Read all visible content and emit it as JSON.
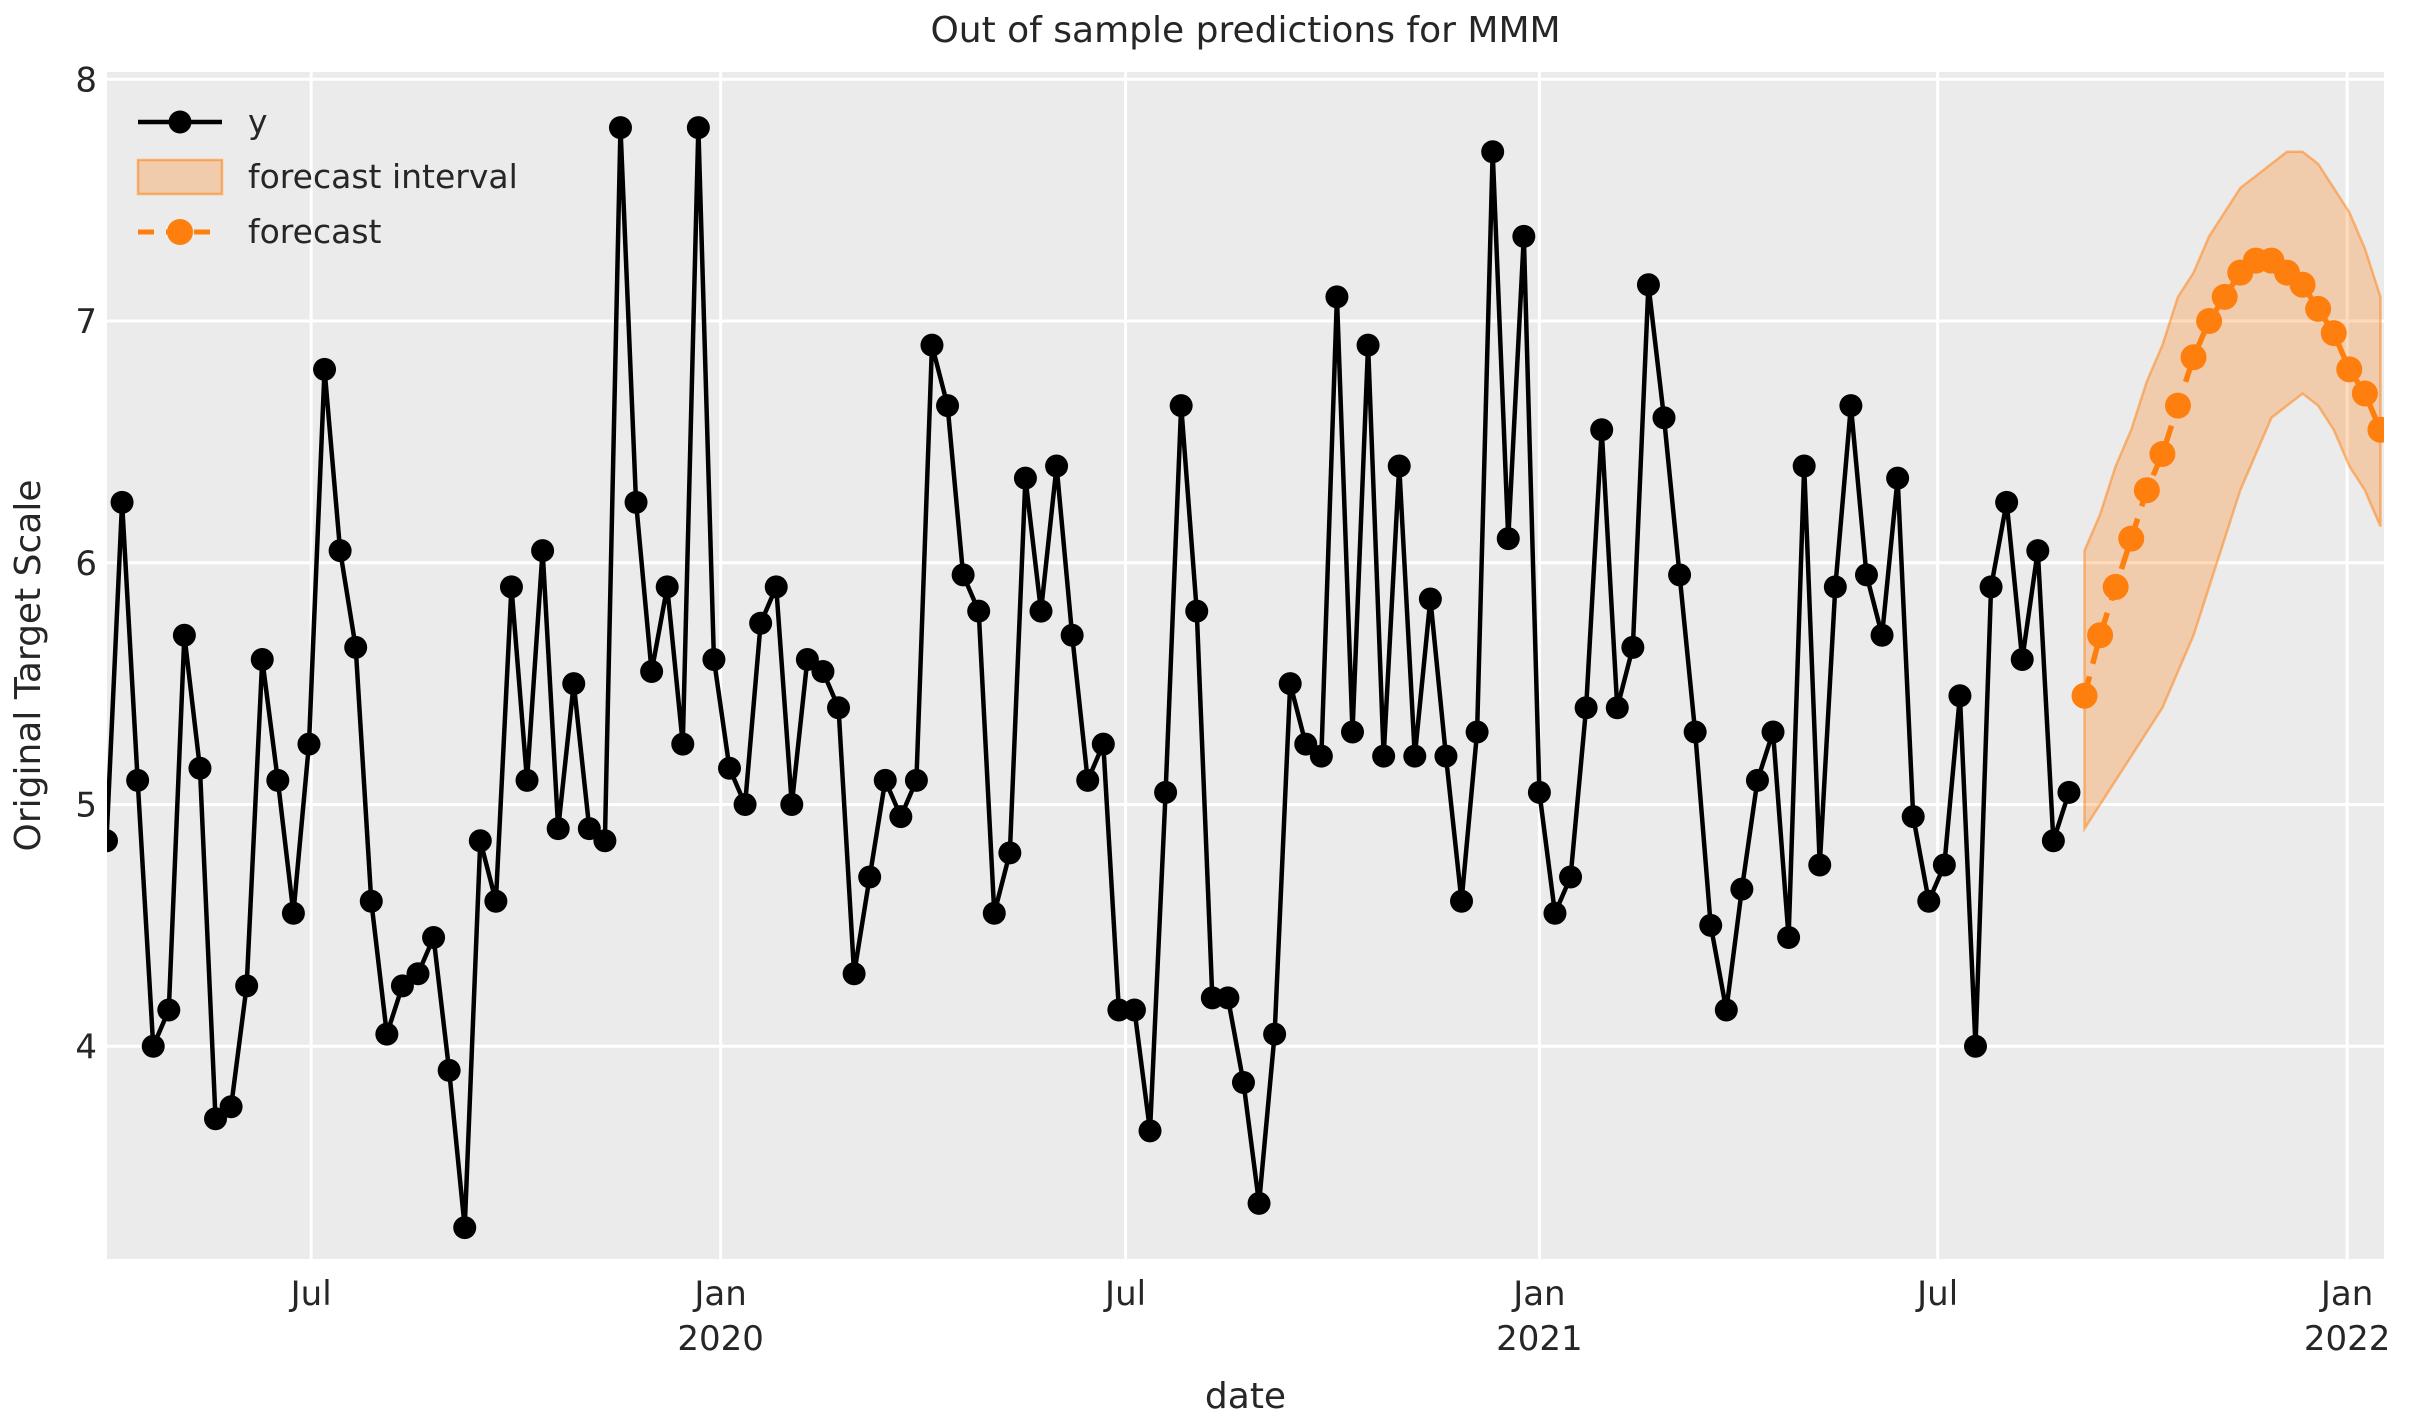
{
  "chart_data": {
    "type": "line",
    "title": "Out of sample predictions for MMM",
    "xlabel": "date",
    "ylabel": "Original Target Scale",
    "grid": true,
    "legend_position": "upper left",
    "plot_background": "#ebebeb",
    "grid_color": "#ffffff",
    "text_color": "#262626",
    "ylim": [
      3.12,
      8.03
    ],
    "yticks": [
      4,
      5,
      6,
      7,
      8
    ],
    "xticks": [
      {
        "label": "Jul",
        "year": "",
        "index": 13.14
      },
      {
        "label": "Jan",
        "year": "2020",
        "index": 39.43
      },
      {
        "label": "Jul",
        "year": "",
        "index": 65.43
      },
      {
        "label": "Jan",
        "year": "2021",
        "index": 92.0
      },
      {
        "label": "Jul",
        "year": "",
        "index": 117.57
      },
      {
        "label": "Jan",
        "year": "2022",
        "index": 143.86
      }
    ],
    "legend": [
      {
        "label": "y",
        "kind": "line-marker",
        "color": "#000000"
      },
      {
        "label": "forecast interval",
        "kind": "band",
        "fill": "rgba(255,127,14,0.28)",
        "edge": "rgba(255,127,14,0.55)"
      },
      {
        "label": "forecast",
        "kind": "dashed-line-marker",
        "color": "#ff7f0e"
      }
    ],
    "series": [
      {
        "name": "y",
        "color": "#000000",
        "style": "solid",
        "marker": "circle",
        "freq": "weekly",
        "start_date": "2019-03-31",
        "end_date": "2021-08-29",
        "start_index": 0,
        "values": [
          4.85,
          6.25,
          5.1,
          4.0,
          4.15,
          5.7,
          5.15,
          3.7,
          3.75,
          4.25,
          5.6,
          5.1,
          4.55,
          5.25,
          6.8,
          6.05,
          5.65,
          4.6,
          4.05,
          4.25,
          4.3,
          4.45,
          3.9,
          3.25,
          4.85,
          4.6,
          5.9,
          5.1,
          6.05,
          4.9,
          5.5,
          4.9,
          4.85,
          7.8,
          6.25,
          5.55,
          5.9,
          5.25,
          7.8,
          5.6,
          5.15,
          5.0,
          5.75,
          5.9,
          5.0,
          5.6,
          5.55,
          5.4,
          4.3,
          4.7,
          5.1,
          4.95,
          5.1,
          6.9,
          6.65,
          5.95,
          5.8,
          4.55,
          4.8,
          6.35,
          5.8,
          6.4,
          5.7,
          5.1,
          5.25,
          4.15,
          4.15,
          3.65,
          5.05,
          6.65,
          5.8,
          4.2,
          4.2,
          3.85,
          3.35,
          4.05,
          5.5,
          5.25,
          5.2,
          7.1,
          5.3,
          6.9,
          5.2,
          6.4,
          5.2,
          5.85,
          5.2,
          4.6,
          5.3,
          7.7,
          6.1,
          7.35,
          5.05,
          4.55,
          4.7,
          5.4,
          6.55,
          5.4,
          5.65,
          7.15,
          6.6,
          5.95,
          5.3,
          4.5,
          4.15,
          4.65,
          5.1,
          5.3,
          4.45,
          6.4,
          4.75,
          5.9,
          6.65,
          5.95,
          5.7,
          6.35,
          4.95,
          4.6,
          4.75,
          5.45,
          4.0,
          5.9,
          6.25,
          5.6,
          6.05,
          4.85,
          5.05
        ]
      },
      {
        "name": "forecast",
        "color": "#ff7f0e",
        "style": "dashed",
        "marker": "circle",
        "freq": "weekly",
        "start_date": "2021-09-05",
        "end_date": "2022-01-16",
        "start_index": 127,
        "values": [
          5.45,
          5.7,
          5.9,
          6.1,
          6.3,
          6.45,
          6.65,
          6.85,
          7.0,
          7.1,
          7.2,
          7.25,
          7.25,
          7.2,
          7.15,
          7.05,
          6.95,
          6.8,
          6.7,
          6.55
        ]
      }
    ],
    "interval": {
      "name": "forecast interval",
      "freq": "weekly",
      "start_date": "2021-09-05",
      "start_index": 127,
      "fill": "rgba(255,127,14,0.28)",
      "edge": "rgba(255,127,14,0.5)",
      "upper": [
        6.05,
        6.2,
        6.4,
        6.55,
        6.75,
        6.9,
        7.1,
        7.2,
        7.35,
        7.45,
        7.55,
        7.6,
        7.65,
        7.7,
        7.7,
        7.65,
        7.55,
        7.45,
        7.3,
        7.1
      ],
      "lower": [
        4.9,
        5.0,
        5.1,
        5.2,
        5.3,
        5.4,
        5.55,
        5.7,
        5.9,
        6.1,
        6.3,
        6.45,
        6.6,
        6.65,
        6.7,
        6.65,
        6.55,
        6.4,
        6.3,
        6.15
      ]
    }
  }
}
